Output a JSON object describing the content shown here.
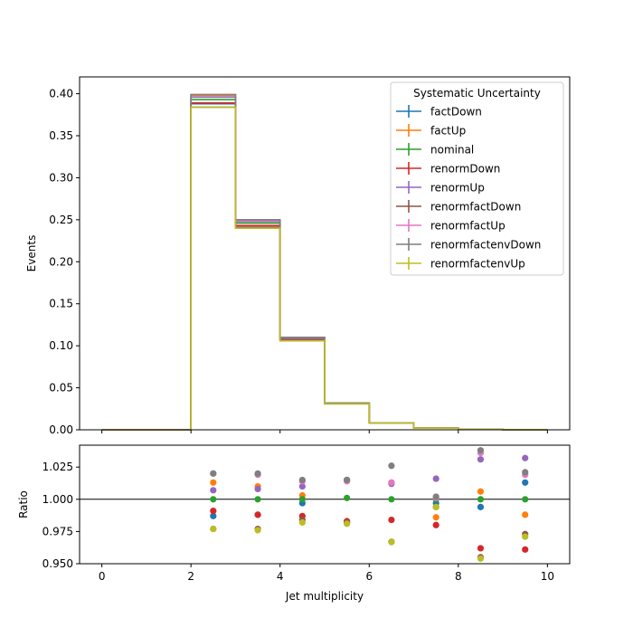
{
  "chart_data": [
    {
      "type": "step",
      "xlabel": "",
      "ylabel": "Events",
      "xlim": [
        -0.5,
        10.5
      ],
      "ylim": [
        0.0,
        0.42
      ],
      "x_ticks": [
        "0",
        "2",
        "4",
        "6",
        "8",
        "10"
      ],
      "y_ticks": [
        "0.00",
        "0.05",
        "0.10",
        "0.15",
        "0.20",
        "0.25",
        "0.30",
        "0.35",
        "0.40"
      ],
      "bin_edges": [
        0,
        1,
        2,
        3,
        4,
        5,
        6,
        7,
        8,
        9,
        10
      ],
      "legend_title": "Systematic Uncertainty",
      "legend_position": "top-right",
      "series": [
        {
          "name": "factDown",
          "color": "#1f77b4",
          "values": [
            0,
            0,
            0.388,
            0.243,
            0.107,
            0.031,
            0.0081,
            0.002,
            0.0005,
            0.0001
          ]
        },
        {
          "name": "factUp",
          "color": "#ff7f0e",
          "values": [
            0,
            0,
            0.398,
            0.248,
            0.109,
            0.032,
            0.0082,
            0.002,
            0.00051,
            0.0001
          ]
        },
        {
          "name": "nominal",
          "color": "#2ca02c",
          "values": [
            0,
            0,
            0.393,
            0.246,
            0.108,
            0.0315,
            0.0082,
            0.002,
            0.0005,
            0.0001
          ]
        },
        {
          "name": "renormDown",
          "color": "#d62728",
          "values": [
            0,
            0,
            0.389,
            0.243,
            0.107,
            0.031,
            0.0081,
            0.002,
            0.00049,
            0.0001
          ]
        },
        {
          "name": "renormUp",
          "color": "#9467bd",
          "values": [
            0,
            0,
            0.396,
            0.248,
            0.109,
            0.032,
            0.0083,
            0.002,
            0.00051,
            0.0001
          ]
        },
        {
          "name": "renormfactDown",
          "color": "#8c564b",
          "values": [
            0,
            0,
            0.384,
            0.241,
            0.106,
            0.0309,
            0.0081,
            0.002,
            0.00049,
            0.0001
          ]
        },
        {
          "name": "renormfactUp",
          "color": "#e377c2",
          "values": [
            0,
            0,
            0.399,
            0.249,
            0.11,
            0.032,
            0.0083,
            0.002,
            0.00052,
            0.0001
          ]
        },
        {
          "name": "renormfactenvDown",
          "color": "#7f7f7f",
          "values": [
            0,
            0,
            0.399,
            0.25,
            0.11,
            0.032,
            0.0083,
            0.002,
            0.00052,
            0.0001
          ]
        },
        {
          "name": "renormfactenvUp",
          "color": "#bcbd22",
          "values": [
            0,
            0,
            0.384,
            0.24,
            0.106,
            0.0309,
            0.008,
            0.002,
            0.00048,
            0.0001
          ]
        }
      ]
    },
    {
      "type": "scatter",
      "xlabel": "Jet multiplicity",
      "ylabel": "Ratio",
      "xlim": [
        -0.5,
        10.5
      ],
      "ylim": [
        0.95,
        1.042
      ],
      "x_ticks": [
        "0",
        "2",
        "4",
        "6",
        "8",
        "10"
      ],
      "y_ticks": [
        "0.950",
        "0.975",
        "1.000",
        "1.025"
      ],
      "reference_line": 1.0,
      "x": [
        2.5,
        3.5,
        4.5,
        5.5,
        6.5,
        7.5,
        8.5,
        9.5
      ],
      "series": [
        {
          "name": "factDown",
          "color": "#1f77b4",
          "values": [
            0.987,
            0.988,
            0.997,
            0.982,
            0.967,
            0.997,
            0.994,
            1.013
          ]
        },
        {
          "name": "factUp",
          "color": "#ff7f0e",
          "values": [
            1.013,
            1.01,
            1.003,
            1.015,
            1.013,
            0.986,
            1.006,
            0.988
          ]
        },
        {
          "name": "nominal",
          "color": "#2ca02c",
          "values": [
            1.0,
            1.0,
            1.0,
            1.001,
            1.0,
            1.0,
            1.0,
            1.0
          ]
        },
        {
          "name": "renormDown",
          "color": "#d62728",
          "values": [
            0.991,
            0.988,
            0.987,
            0.983,
            0.984,
            0.98,
            0.962,
            0.961
          ]
        },
        {
          "name": "renormUp",
          "color": "#9467bd",
          "values": [
            1.007,
            1.008,
            1.01,
            1.015,
            1.012,
            1.016,
            1.031,
            1.032
          ]
        },
        {
          "name": "renormfactDown",
          "color": "#8c564b",
          "values": [
            0.977,
            0.977,
            0.984,
            0.982,
            0.967,
            0.994,
            0.955,
            0.973
          ]
        },
        {
          "name": "renormfactUp",
          "color": "#e377c2",
          "values": [
            1.02,
            1.019,
            1.014,
            1.014,
            1.013,
            1.001,
            1.036,
            1.019
          ]
        },
        {
          "name": "renormfactenvDown",
          "color": "#7f7f7f",
          "values": [
            1.02,
            1.02,
            1.015,
            1.015,
            1.026,
            1.002,
            1.038,
            1.021
          ]
        },
        {
          "name": "renormfactenvUp",
          "color": "#bcbd22",
          "values": [
            0.977,
            0.976,
            0.982,
            0.981,
            0.967,
            0.994,
            0.954,
            0.971
          ]
        }
      ]
    }
  ]
}
